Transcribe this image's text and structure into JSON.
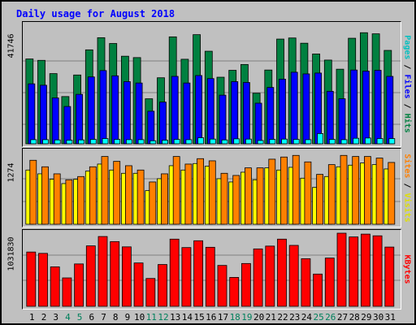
{
  "chart_data": {
    "type": "bar",
    "title": "Daily usage for August 2018",
    "categories": [
      "1",
      "2",
      "3",
      "4",
      "5",
      "6",
      "7",
      "8",
      "9",
      "10",
      "11",
      "12",
      "13",
      "14",
      "15",
      "16",
      "17",
      "18",
      "19",
      "20",
      "21",
      "22",
      "23",
      "24",
      "25",
      "26",
      "27",
      "28",
      "29",
      "30",
      "31"
    ],
    "weekend_days": [
      "4",
      "5",
      "11",
      "12",
      "18",
      "19",
      "25",
      "26"
    ],
    "panels": [
      {
        "id": "hits-files-pages",
        "ymax_label": "41746",
        "ymax": 41746,
        "right_label": {
          "parts": [
            "Pages",
            " / ",
            "Files",
            " / ",
            "Hits"
          ]
        },
        "series": [
          {
            "name": "Hits",
            "color": "#008040",
            "values": [
              30700,
              30200,
              25400,
              17100,
              24900,
              34000,
              38400,
              36300,
              31700,
              31200,
              16300,
              23900,
              38700,
              30600,
              39500,
              33500,
              24100,
              26600,
              28700,
              18300,
              26700,
              37900,
              38300,
              36400,
              32500,
              30300,
              27000,
              38200,
              40200,
              39800,
              33800
            ]
          },
          {
            "name": "Files",
            "color": "#0000ff",
            "values": [
              21700,
              21200,
              16600,
              13500,
              17900,
              24200,
              26500,
              24600,
              22500,
              22000,
              11800,
              15100,
              24400,
              22000,
              24700,
              23600,
              17600,
              22500,
              22200,
              14700,
              20400,
              23400,
              25900,
              25300,
              25600,
              19000,
              16300,
              26700,
              26300,
              26600,
              24400
            ]
          },
          {
            "name": "Pages",
            "color": "#00ffff",
            "values": [
              1500,
              1500,
              1400,
              1300,
              1400,
              1600,
              1900,
              1600,
              1500,
              1500,
              1100,
              1300,
              1600,
              1500,
              2200,
              1700,
              1400,
              1800,
              1700,
              1200,
              1600,
              1700,
              1600,
              1500,
              3700,
              1600,
              1500,
              2000,
              2100,
              1900,
              1900
            ]
          }
        ]
      },
      {
        "id": "visits-sites",
        "ymax_label": "1274",
        "ymax": 1274,
        "right_label": {
          "parts": [
            "Sites",
            " / ",
            "Visits"
          ]
        },
        "series": [
          {
            "name": "Visits",
            "color": "#ffff00",
            "values": [
              1000,
              930,
              830,
              750,
              830,
              980,
              1110,
              1000,
              940,
              940,
              620,
              840,
              1080,
              1000,
              1120,
              1070,
              840,
              780,
              960,
              820,
              1040,
              1000,
              1050,
              850,
              680,
              880,
              1060,
              1090,
              1130,
              1100,
              1020
            ]
          },
          {
            "name": "Sites",
            "color": "#ff8000",
            "values": [
              1180,
              1060,
              930,
              820,
              880,
              1060,
              1250,
              1160,
              1080,
              1000,
              780,
              930,
              1250,
              1110,
              1210,
              1170,
              940,
              900,
              1040,
              1040,
              1200,
              1240,
              1270,
              1150,
              920,
              1100,
              1270,
              1250,
              1250,
              1220,
              1140
            ]
          }
        ]
      },
      {
        "id": "kbytes",
        "ymax_label": "1031830",
        "ymax": 1031830,
        "right_label": {
          "parts": [
            "KBytes"
          ]
        },
        "series": [
          {
            "name": "KBytes",
            "color": "#ff0000",
            "values": [
              766000,
              747000,
              557000,
              401000,
              598000,
              853000,
              985000,
              913000,
              839000,
              612000,
              393000,
              590000,
              948000,
              829000,
              925000,
              833000,
              577000,
              408000,
              604000,
              810000,
              850000,
              948000,
              860000,
              672000,
              455000,
              681000,
              1031830,
              979000,
              1019000,
              995000,
              836000
            ]
          }
        ]
      }
    ]
  },
  "colors": {
    "title": "#0000ff",
    "weekday": "#000000",
    "weekend": "#00805c",
    "grid": "#808080",
    "pages_label": "#00c0c0",
    "files_label": "#0000ff",
    "hits_label": "#008040",
    "sites_label": "#ff8000",
    "visits_label": "#e0e000",
    "kbytes_label": "#ff0000",
    "separator": "#000000"
  }
}
